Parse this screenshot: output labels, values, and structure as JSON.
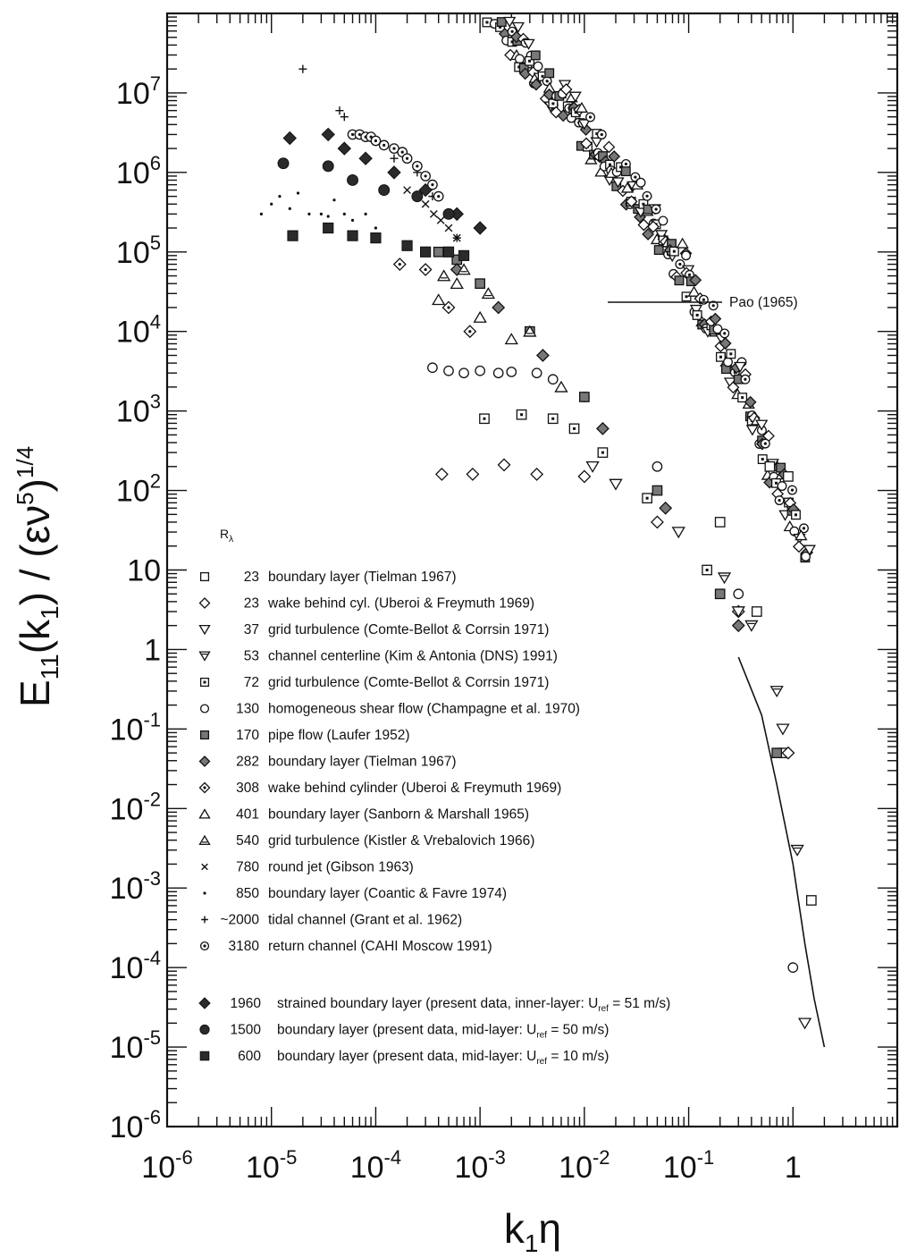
{
  "chart_data": {
    "type": "scatter",
    "title": "",
    "xlabel": {
      "base": "k",
      "sub": "1",
      "rest": "η"
    },
    "ylabel": {
      "p1": "E",
      "sub1": "11",
      "p2": "(k",
      "sub2": "1",
      "p3": ") / (εν",
      "sup1": "5",
      "p4": ")",
      "sup2": "1/4"
    },
    "x_scale": "log",
    "y_scale": "log",
    "xlim": [
      1e-06,
      10
    ],
    "ylim": [
      1e-06,
      100000000.0
    ],
    "grid": false,
    "x_ticks": [
      {
        "v": 1e-06,
        "base": "10",
        "exp": "-6"
      },
      {
        "v": 1e-05,
        "base": "10",
        "exp": "-5"
      },
      {
        "v": 0.0001,
        "base": "10",
        "exp": "-4"
      },
      {
        "v": 0.001,
        "base": "10",
        "exp": "-3"
      },
      {
        "v": 0.01,
        "base": "10",
        "exp": "-2"
      },
      {
        "v": 0.1,
        "base": "10",
        "exp": "-1"
      },
      {
        "v": 1,
        "base": "1",
        "exp": ""
      }
    ],
    "y_ticks": [
      {
        "v": 10000000.0,
        "base": "10",
        "exp": "7"
      },
      {
        "v": 1000000.0,
        "base": "10",
        "exp": "6"
      },
      {
        "v": 100000.0,
        "base": "10",
        "exp": "5"
      },
      {
        "v": 10000.0,
        "base": "10",
        "exp": "4"
      },
      {
        "v": 1000.0,
        "base": "10",
        "exp": "3"
      },
      {
        "v": 100.0,
        "base": "10",
        "exp": "2"
      },
      {
        "v": 10,
        "base": "10",
        "exp": ""
      },
      {
        "v": 1,
        "base": "1",
        "exp": ""
      },
      {
        "v": 0.1,
        "base": "10",
        "exp": "-1"
      },
      {
        "v": 0.01,
        "base": "10",
        "exp": "-2"
      },
      {
        "v": 0.001,
        "base": "10",
        "exp": "-3"
      },
      {
        "v": 0.0001,
        "base": "10",
        "exp": "-4"
      },
      {
        "v": 1e-05,
        "base": "10",
        "exp": "-5"
      },
      {
        "v": 1e-06,
        "base": "10",
        "exp": "-6"
      }
    ],
    "pao_label": "Pao (1965)",
    "pao_curve": [
      [
        0.3,
        0.8
      ],
      [
        0.5,
        0.15
      ],
      [
        0.7,
        0.02
      ],
      [
        1.0,
        0.002
      ],
      [
        1.3,
        0.0002
      ],
      [
        1.6,
        4e-05
      ],
      [
        2.0,
        1e-05
      ]
    ],
    "legend_header": {
      "base": "R",
      "sub": "λ"
    },
    "legend": [
      {
        "marker": "square-open",
        "re": "23",
        "label": "boundary layer (Tielman 1967)"
      },
      {
        "marker": "diamond-open",
        "re": "23",
        "label": "wake behind cyl. (Uberoi & Freymuth 1969)"
      },
      {
        "marker": "triangle-down-open",
        "re": "37",
        "label": "grid turbulence (Comte-Bellot & Corrsin 1971)"
      },
      {
        "marker": "triangle-down-lined",
        "re": "53",
        "label": "channel centerline (Kim & Antonia (DNS) 1991)"
      },
      {
        "marker": "square-dotted",
        "re": "72",
        "label": "grid turbulence (Comte-Bellot & Corrsin 1971)"
      },
      {
        "marker": "circle-open",
        "re": "130",
        "label": "homogeneous shear flow (Champagne et al. 1970)"
      },
      {
        "marker": "square-hatched",
        "re": "170",
        "label": "pipe flow (Laufer 1952)"
      },
      {
        "marker": "diamond-hatched",
        "re": "282",
        "label": "boundary layer (Tielman 1967)"
      },
      {
        "marker": "diamond-dotted",
        "re": "308",
        "label": "wake behind cylinder (Uberoi & Freymuth 1969)"
      },
      {
        "marker": "triangle-up-open",
        "re": "401",
        "label": "boundary layer (Sanborn & Marshall 1965)"
      },
      {
        "marker": "triangle-up-lined",
        "re": "540",
        "label": "grid turbulence (Kistler & Vrebalovich 1966)"
      },
      {
        "marker": "cross-x",
        "re": "780",
        "label": "round jet (Gibson 1963)"
      },
      {
        "marker": "dot",
        "re": "850",
        "label": "boundary layer (Coantic & Favre 1974)"
      },
      {
        "marker": "plus",
        "re": "~2000",
        "label": "tidal channel (Grant et al. 1962)"
      },
      {
        "marker": "circle-dot",
        "re": "3180",
        "label": "return channel (CAHI Moscow 1991)"
      }
    ],
    "legend_present": [
      {
        "marker": "diamond-filled",
        "re": "1960",
        "label": "strained boundary layer (present data, inner-layer: U",
        "sub": "ref",
        "tail": " = 51 m/s)"
      },
      {
        "marker": "circle-filled",
        "re": "1500",
        "label": "boundary layer (present data, mid-layer: U",
        "sub": "ref",
        "tail": " = 50 m/s)"
      },
      {
        "marker": "square-filled",
        "re": "600",
        "label": "boundary layer (present data, mid-layer: U",
        "sub": "ref",
        "tail": " = 10 m/s)"
      }
    ],
    "series": [
      {
        "marker": "square-open",
        "points": [
          [
            0.6,
            200
          ],
          [
            0.9,
            150
          ],
          [
            0.2,
            40
          ],
          [
            1.5,
            0.0007
          ],
          [
            0.45,
            3
          ],
          [
            0.8,
            0.05
          ]
        ]
      },
      {
        "marker": "diamond-open",
        "points": [
          [
            0.00043,
            160
          ],
          [
            0.00085,
            160
          ],
          [
            0.0017,
            210
          ],
          [
            0.0035,
            160
          ],
          [
            0.01,
            150
          ],
          [
            0.05,
            40
          ],
          [
            0.3,
            3
          ],
          [
            0.9,
            0.05
          ]
        ]
      },
      {
        "marker": "triangle-down-open",
        "points": [
          [
            0.012,
            200
          ],
          [
            0.02,
            120
          ],
          [
            0.08,
            30
          ],
          [
            0.3,
            3
          ],
          [
            0.8,
            0.1
          ],
          [
            1.3,
            2e-05
          ]
        ]
      },
      {
        "marker": "triangle-down-lined",
        "points": [
          [
            0.22,
            8
          ],
          [
            0.4,
            2
          ],
          [
            0.7,
            0.3
          ],
          [
            1.1,
            0.003
          ]
        ]
      },
      {
        "marker": "square-dotted",
        "points": [
          [
            0.0011,
            800
          ],
          [
            0.0025,
            900
          ],
          [
            0.005,
            800
          ],
          [
            0.008,
            600
          ],
          [
            0.015,
            300
          ],
          [
            0.04,
            80
          ],
          [
            0.15,
            10
          ]
        ]
      },
      {
        "marker": "circle-open",
        "points": [
          [
            0.00035,
            3500
          ],
          [
            0.0005,
            3200
          ],
          [
            0.0007,
            3000
          ],
          [
            0.001,
            3200
          ],
          [
            0.0015,
            3000
          ],
          [
            0.002,
            3100
          ],
          [
            0.0035,
            3000
          ],
          [
            0.005,
            2500
          ],
          [
            0.01,
            1500
          ],
          [
            0.05,
            200
          ],
          [
            0.3,
            5
          ],
          [
            1.0,
            0.0001
          ]
        ]
      },
      {
        "marker": "square-hatched",
        "points": [
          [
            0.0004,
            100000.0
          ],
          [
            0.0006,
            80000.0
          ],
          [
            0.001,
            40000.0
          ],
          [
            0.003,
            10000.0
          ],
          [
            0.01,
            1500
          ],
          [
            0.05,
            100
          ],
          [
            0.2,
            5
          ],
          [
            0.7,
            0.05
          ]
        ]
      },
      {
        "marker": "diamond-hatched",
        "points": [
          [
            0.0006,
            60000.0
          ],
          [
            0.0015,
            20000.0
          ],
          [
            0.004,
            5000
          ],
          [
            0.015,
            600
          ],
          [
            0.06,
            60
          ],
          [
            0.3,
            2
          ]
        ]
      },
      {
        "marker": "diamond-dotted",
        "points": [
          [
            0.00017,
            70000.0
          ],
          [
            0.0003,
            60000.0
          ],
          [
            0.0005,
            20000.0
          ],
          [
            0.0008,
            10000.0
          ]
        ]
      },
      {
        "marker": "triangle-up-open",
        "points": [
          [
            0.0004,
            25000.0
          ],
          [
            0.0006,
            40000.0
          ],
          [
            0.001,
            15000.0
          ],
          [
            0.002,
            8000
          ],
          [
            0.006,
            2000
          ]
        ]
      },
      {
        "marker": "triangle-up-lined",
        "points": [
          [
            0.00045,
            50000.0
          ],
          [
            0.0007,
            60000.0
          ],
          [
            0.0012,
            30000.0
          ],
          [
            0.003,
            10000.0
          ]
        ]
      },
      {
        "marker": "cross-x",
        "points": [
          [
            0.0003,
            400000.0
          ],
          [
            0.00036,
            300000.0
          ],
          [
            0.00042,
            250000.0
          ],
          [
            0.0005,
            200000.0
          ],
          [
            0.0002,
            600000.0
          ],
          [
            0.0006,
            150000.0
          ]
        ]
      },
      {
        "marker": "dot",
        "points": [
          [
            8e-06,
            300000.0
          ],
          [
            1e-05,
            400000.0
          ],
          [
            1.2e-05,
            500000.0
          ],
          [
            1.5e-05,
            350000.0
          ],
          [
            1.8e-05,
            550000.0
          ],
          [
            2.3e-05,
            300000.0
          ],
          [
            3e-05,
            300000.0
          ],
          [
            3.5e-05,
            280000.0
          ],
          [
            4e-05,
            450000.0
          ],
          [
            5e-05,
            300000.0
          ],
          [
            6e-05,
            250000.0
          ],
          [
            8e-05,
            300000.0
          ],
          [
            0.0001,
            200000.0
          ]
        ]
      },
      {
        "marker": "plus",
        "points": [
          [
            2e-05,
            20000000.0
          ],
          [
            4.5e-05,
            6000000.0
          ],
          [
            5e-05,
            5000000.0
          ],
          [
            0.00015,
            1500000.0
          ],
          [
            0.00025,
            1000000.0
          ],
          [
            0.00035,
            500000.0
          ],
          [
            0.0005,
            300000.0
          ],
          [
            0.0006,
            150000.0
          ]
        ]
      },
      {
        "marker": "circle-dot",
        "points": [
          [
            6e-05,
            3000000.0
          ],
          [
            7e-05,
            3000000.0
          ],
          [
            8e-05,
            2800000.0
          ],
          [
            9e-05,
            2800000.0
          ],
          [
            0.0001,
            2500000.0
          ],
          [
            0.00012,
            2200000.0
          ],
          [
            0.00015,
            2000000.0
          ],
          [
            0.00018,
            1800000.0
          ],
          [
            0.0002,
            1500000.0
          ],
          [
            0.00025,
            1200000.0
          ],
          [
            0.0003,
            900000.0
          ],
          [
            0.00035,
            700000.0
          ],
          [
            0.0004,
            500000.0
          ]
        ]
      },
      {
        "marker": "diamond-filled",
        "points": [
          [
            1.5e-05,
            2700000.0
          ],
          [
            3.5e-05,
            3000000.0
          ],
          [
            5e-05,
            2000000.0
          ],
          [
            8e-05,
            1500000.0
          ],
          [
            0.00015,
            1000000.0
          ],
          [
            0.0003,
            600000.0
          ],
          [
            0.0006,
            300000.0
          ],
          [
            0.001,
            200000.0
          ]
        ]
      },
      {
        "marker": "circle-filled",
        "points": [
          [
            1.3e-05,
            1300000.0
          ],
          [
            3.5e-05,
            1200000.0
          ],
          [
            6e-05,
            800000.0
          ],
          [
            0.00012,
            600000.0
          ],
          [
            0.00025,
            500000.0
          ],
          [
            0.0005,
            300000.0
          ]
        ]
      },
      {
        "marker": "square-filled",
        "points": [
          [
            1.6e-05,
            160000.0
          ],
          [
            3.5e-05,
            200000.0
          ],
          [
            6e-05,
            160000.0
          ],
          [
            0.0001,
            150000.0
          ],
          [
            0.0002,
            120000.0
          ],
          [
            0.0003,
            100000.0
          ],
          [
            0.0005,
            100000.0
          ],
          [
            0.0007,
            90000.0
          ]
        ]
      }
    ],
    "collapse_band": {
      "x_from": 0.0005,
      "x_to": 1.4,
      "steps": 260
    }
  }
}
